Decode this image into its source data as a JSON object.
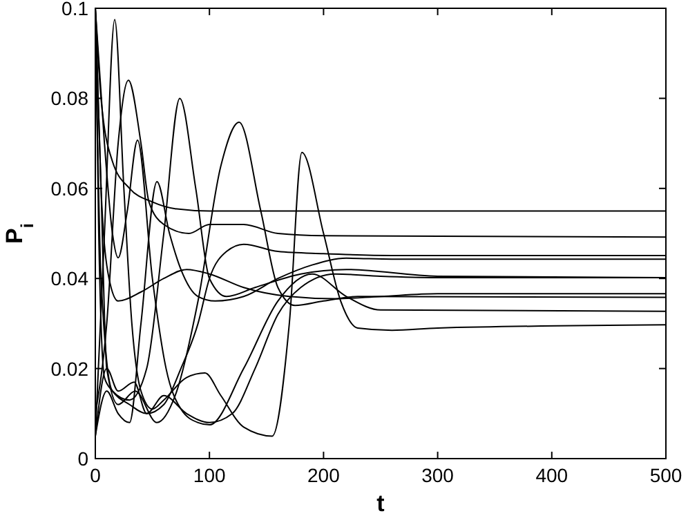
{
  "chart_data": {
    "type": "line",
    "xlabel": "t",
    "ylabel": "P$_{i}$",
    "xlim": [
      0,
      500
    ],
    "xticks": [
      0,
      100,
      200,
      300,
      400,
      500
    ],
    "ylim": [
      0,
      0.1
    ],
    "yticks": [
      0,
      0.02,
      0.04,
      0.06,
      0.08,
      0.1
    ],
    "grid": false,
    "marker": "none",
    "line_style": "solid",
    "series": [
      {
        "color": "#000000",
        "x": [
          0,
          8,
          17,
          25,
          32,
          40,
          50,
          60,
          80,
          96,
          110,
          130,
          155,
          170,
          181,
          200,
          215,
          230,
          260,
          300,
          500
        ],
        "values": [
          0.005,
          0.05,
          0.0975,
          0.06,
          0.03,
          0.015,
          0.011,
          0.013,
          0.018,
          0.019,
          0.014,
          0.007,
          0.005,
          0.03,
          0.068,
          0.05,
          0.035,
          0.029,
          0.0285,
          0.029,
          0.0297
        ]
      },
      {
        "color": "#000000",
        "x": [
          0,
          5,
          10,
          20,
          35,
          54,
          70,
          90,
          110,
          126,
          145,
          160,
          175,
          200,
          230,
          500
        ],
        "values": [
          0.1,
          0.06,
          0.02,
          0.012,
          0.015,
          0.008,
          0.014,
          0.035,
          0.065,
          0.0747,
          0.055,
          0.038,
          0.034,
          0.035,
          0.036,
          0.0358
        ]
      },
      {
        "color": "#000000",
        "x": [
          0,
          5,
          15,
          30,
          45,
          60,
          74,
          88,
          100,
          115,
          140,
          180,
          220,
          300,
          500
        ],
        "values": [
          0.1,
          0.04,
          0.015,
          0.013,
          0.02,
          0.05,
          0.08,
          0.06,
          0.04,
          0.036,
          0.038,
          0.041,
          0.042,
          0.0405,
          0.0402
        ]
      },
      {
        "color": "#000000",
        "x": [
          0,
          10,
          20,
          29,
          40,
          47,
          60,
          82,
          100,
          130,
          160,
          200,
          500
        ],
        "values": [
          0.01,
          0.03,
          0.07,
          0.084,
          0.07,
          0.057,
          0.052,
          0.05,
          0.052,
          0.052,
          0.05,
          0.0495,
          0.0492
        ]
      },
      {
        "color": "#000000",
        "x": [
          0,
          5,
          15,
          30,
          50,
          70,
          100,
          500
        ],
        "values": [
          0.1,
          0.08,
          0.066,
          0.06,
          0.057,
          0.0555,
          0.055,
          0.055
        ]
      },
      {
        "color": "#000000",
        "x": [
          0,
          8,
          15,
          20,
          28,
          37,
          50,
          62,
          75,
          90,
          100,
          130,
          160,
          190,
          220,
          250,
          500
        ],
        "values": [
          0.1,
          0.07,
          0.05,
          0.0446,
          0.055,
          0.0707,
          0.04,
          0.02,
          0.011,
          0.008,
          0.0075,
          0.02,
          0.035,
          0.041,
          0.036,
          0.033,
          0.0327
        ]
      },
      {
        "color": "#000000",
        "x": [
          0,
          10,
          20,
          30,
          40,
          54,
          65,
          75,
          90,
          105,
          130,
          160,
          190,
          220,
          260,
          500
        ],
        "values": [
          0.005,
          0.015,
          0.01,
          0.008,
          0.03,
          0.0615,
          0.05,
          0.042,
          0.036,
          0.035,
          0.036,
          0.04,
          0.043,
          0.0445,
          0.0443,
          0.0443
        ]
      },
      {
        "color": "#000000",
        "x": [
          0,
          3,
          8,
          15,
          30,
          45,
          60,
          75,
          90,
          100,
          115,
          130,
          160,
          200,
          260,
          500
        ],
        "values": [
          0.1,
          0.05,
          0.018,
          0.015,
          0.012,
          0.01,
          0.012,
          0.02,
          0.03,
          0.04,
          0.046,
          0.0476,
          0.046,
          0.0455,
          0.0451,
          0.0451
        ]
      },
      {
        "color": "#000000",
        "x": [
          0,
          5,
          12,
          20,
          40,
          60,
          80,
          100,
          130,
          170,
          210,
          250,
          300,
          500
        ],
        "values": [
          0.1,
          0.06,
          0.04,
          0.035,
          0.037,
          0.04,
          0.042,
          0.041,
          0.038,
          0.036,
          0.0355,
          0.036,
          0.0366,
          0.0366
        ]
      },
      {
        "color": "#000000",
        "x": [
          0,
          10,
          20,
          34,
          45,
          60,
          80,
          100,
          120,
          140,
          160,
          180,
          210,
          250,
          300,
          500
        ],
        "values": [
          0.005,
          0.02,
          0.015,
          0.017,
          0.01,
          0.014,
          0.01,
          0.008,
          0.01,
          0.02,
          0.032,
          0.038,
          0.041,
          0.0405,
          0.0402,
          0.0402
        ]
      }
    ]
  }
}
